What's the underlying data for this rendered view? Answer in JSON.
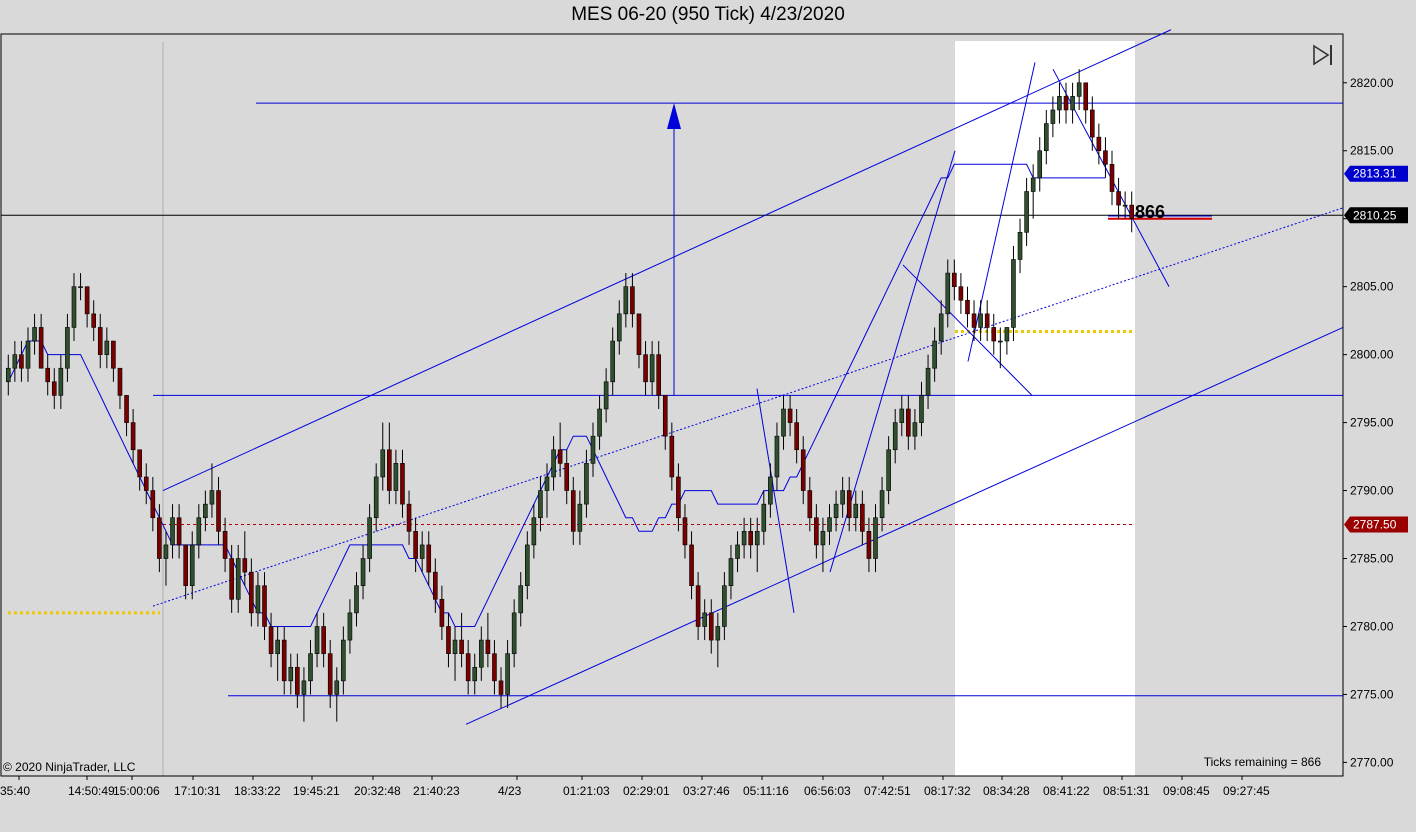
{
  "window": {
    "title": "MES 06-20 (950 Tick)  4/23/2020",
    "copyright": "© 2020 NinjaTrader, LLC",
    "ticks_remaining": "Ticks remaining = 866",
    "countdown_label": "866"
  },
  "colors": {
    "background": "#d9d9d9",
    "session_highlight": "#ffffff",
    "drawing_blue": "#0000dd",
    "up_candle": "#2f4f2f",
    "down_candle": "#7a0000",
    "price_badge_blue": "#0000cc",
    "price_badge_black": "#000000",
    "price_badge_red": "#9b0000",
    "pivot_yellow": "#f0c800"
  },
  "icons": {
    "play": "skip-to-end-icon"
  },
  "chart_data": {
    "type": "candlestick",
    "title": "MES 06-20 (950 Tick)  4/23/2020",
    "y_axis": {
      "side": "right",
      "ylim": [
        2769.0,
        2823.0
      ],
      "ticks": [
        "2820.00",
        "2815.00",
        "2810.00",
        "2805.00",
        "2800.00",
        "2795.00",
        "2790.00",
        "2785.00",
        "2780.00",
        "2775.00",
        "2770.00"
      ]
    },
    "x_axis": {
      "ticks": [
        "35:40",
        "14:50:49",
        "15:00:06",
        "17:10:31",
        "18:33:22",
        "19:45:21",
        "20:32:48",
        "21:40:23",
        "4/23",
        "01:21:03",
        "02:29:01",
        "03:27:46",
        "05:11:16",
        "06:56:03",
        "07:42:51",
        "08:17:32",
        "08:34:28",
        "08:41:22",
        "08:51:31",
        "09:08:45",
        "09:27:45"
      ]
    },
    "price_badges": [
      {
        "label": "2813.31",
        "value": 2813.31,
        "color": "blue"
      },
      {
        "label": "2810.25",
        "value": 2810.25,
        "color": "black"
      },
      {
        "label": "2787.50",
        "value": 2787.5,
        "color": "red"
      }
    ],
    "horizontal_lines": [
      {
        "value": 2818.5,
        "style": "solid"
      },
      {
        "value": 2797.0,
        "style": "solid"
      },
      {
        "value": 2774.9,
        "style": "solid"
      },
      {
        "value": 2810.25,
        "style": "last-price"
      },
      {
        "value": 2787.5,
        "style": "dotted-red"
      },
      {
        "value": 2781.0,
        "style": "dotted-yellow"
      },
      {
        "value": 2801.7,
        "style": "dotted-yellow"
      }
    ],
    "grid": false,
    "bars": [
      [
        2798,
        2800,
        2797,
        2799
      ],
      [
        2799,
        2801,
        2798,
        2800
      ],
      [
        2800,
        2801,
        2798,
        2799
      ],
      [
        2799,
        2802,
        2798,
        2801
      ],
      [
        2801,
        2803,
        2800,
        2802
      ],
      [
        2802,
        2803,
        2799,
        2799
      ],
      [
        2799,
        2800,
        2797,
        2798
      ],
      [
        2798,
        2799,
        2796,
        2797
      ],
      [
        2797,
        2800,
        2796,
        2799
      ],
      [
        2799,
        2803,
        2798,
        2802
      ],
      [
        2802,
        2806,
        2801,
        2805
      ],
      [
        2805,
        2806,
        2804,
        2805
      ],
      [
        2805,
        2805,
        2802,
        2803
      ],
      [
        2803,
        2804,
        2801,
        2802
      ],
      [
        2802,
        2803,
        2799,
        2800
      ],
      [
        2800,
        2802,
        2799,
        2801
      ],
      [
        2801,
        2801,
        2798,
        2799
      ],
      [
        2799,
        2799,
        2796,
        2797
      ],
      [
        2797,
        2797,
        2794,
        2795
      ],
      [
        2795,
        2796,
        2792,
        2793
      ],
      [
        2793,
        2793,
        2790,
        2791
      ],
      [
        2791,
        2792,
        2789,
        2790
      ],
      [
        2790,
        2791,
        2787,
        2788
      ],
      [
        2788,
        2789,
        2784,
        2785
      ],
      [
        2785,
        2787,
        2783,
        2786
      ],
      [
        2786,
        2789,
        2785,
        2788
      ],
      [
        2788,
        2789,
        2785,
        2786
      ],
      [
        2786,
        2786,
        2782,
        2783
      ],
      [
        2783,
        2787,
        2782,
        2786
      ],
      [
        2786,
        2789,
        2785,
        2788
      ],
      [
        2788,
        2790,
        2787,
        2789
      ],
      [
        2789,
        2792,
        2788,
        2790
      ],
      [
        2790,
        2791,
        2786,
        2787
      ],
      [
        2787,
        2788,
        2784,
        2785
      ],
      [
        2785,
        2786,
        2781,
        2782
      ],
      [
        2782,
        2786,
        2781,
        2785
      ],
      [
        2785,
        2787,
        2783,
        2784
      ],
      [
        2784,
        2785,
        2780,
        2781
      ],
      [
        2781,
        2784,
        2780,
        2783
      ],
      [
        2783,
        2784,
        2779,
        2780
      ],
      [
        2780,
        2781,
        2777,
        2778
      ],
      [
        2778,
        2780,
        2776,
        2779
      ],
      [
        2779,
        2780,
        2775,
        2776
      ],
      [
        2776,
        2778,
        2775,
        2777
      ],
      [
        2777,
        2778,
        2774,
        2775
      ],
      [
        2775,
        2777,
        2773,
        2776
      ],
      [
        2776,
        2779,
        2775,
        2778
      ],
      [
        2778,
        2781,
        2777,
        2780
      ],
      [
        2780,
        2781,
        2777,
        2778
      ],
      [
        2778,
        2779,
        2774,
        2775
      ],
      [
        2775,
        2777,
        2773,
        2776
      ],
      [
        2776,
        2780,
        2775,
        2779
      ],
      [
        2779,
        2782,
        2778,
        2781
      ],
      [
        2781,
        2784,
        2780,
        2783
      ],
      [
        2783,
        2786,
        2782,
        2785
      ],
      [
        2785,
        2789,
        2784,
        2788
      ],
      [
        2788,
        2792,
        2787,
        2791
      ],
      [
        2791,
        2795,
        2790,
        2793
      ],
      [
        2793,
        2795,
        2789,
        2790
      ],
      [
        2790,
        2793,
        2789,
        2792
      ],
      [
        2792,
        2793,
        2788,
        2789
      ],
      [
        2789,
        2790,
        2786,
        2787
      ],
      [
        2787,
        2788,
        2784,
        2785
      ],
      [
        2785,
        2787,
        2784,
        2786
      ],
      [
        2786,
        2787,
        2783,
        2784
      ],
      [
        2784,
        2785,
        2781,
        2782
      ],
      [
        2782,
        2783,
        2779,
        2780
      ],
      [
        2780,
        2781,
        2777,
        2778
      ],
      [
        2778,
        2780,
        2776,
        2779
      ],
      [
        2779,
        2781,
        2777,
        2778
      ],
      [
        2778,
        2779,
        2775,
        2776
      ],
      [
        2776,
        2778,
        2775,
        2777
      ],
      [
        2777,
        2780,
        2776,
        2779
      ],
      [
        2779,
        2781,
        2777,
        2778
      ],
      [
        2778,
        2779,
        2775,
        2776
      ],
      [
        2776,
        2777,
        2774,
        2775
      ],
      [
        2775,
        2779,
        2774,
        2778
      ],
      [
        2778,
        2782,
        2777,
        2781
      ],
      [
        2781,
        2784,
        2780,
        2783
      ],
      [
        2783,
        2787,
        2782,
        2786
      ],
      [
        2786,
        2789,
        2785,
        2788
      ],
      [
        2788,
        2791,
        2787,
        2790
      ],
      [
        2790,
        2792,
        2788,
        2791
      ],
      [
        2791,
        2794,
        2790,
        2793
      ],
      [
        2793,
        2795,
        2791,
        2792
      ],
      [
        2792,
        2793,
        2789,
        2790
      ],
      [
        2790,
        2791,
        2786,
        2787
      ],
      [
        2787,
        2790,
        2786,
        2789
      ],
      [
        2789,
        2793,
        2788,
        2792
      ],
      [
        2792,
        2795,
        2791,
        2794
      ],
      [
        2794,
        2797,
        2793,
        2796
      ],
      [
        2796,
        2799,
        2795,
        2798
      ],
      [
        2798,
        2802,
        2797,
        2801
      ],
      [
        2801,
        2804,
        2800,
        2803
      ],
      [
        2803,
        2806,
        2802,
        2805
      ],
      [
        2805,
        2806,
        2802,
        2803
      ],
      [
        2803,
        2803,
        2799,
        2800
      ],
      [
        2800,
        2801,
        2797,
        2798
      ],
      [
        2798,
        2801,
        2797,
        2800
      ],
      [
        2800,
        2801,
        2796,
        2797
      ],
      [
        2797,
        2797,
        2793,
        2794
      ],
      [
        2794,
        2795,
        2790,
        2791
      ],
      [
        2791,
        2792,
        2787,
        2788
      ],
      [
        2788,
        2789,
        2785,
        2786
      ],
      [
        2786,
        2787,
        2782,
        2783
      ],
      [
        2783,
        2784,
        2779,
        2780
      ],
      [
        2780,
        2782,
        2779,
        2781
      ],
      [
        2781,
        2782,
        2778,
        2779
      ],
      [
        2779,
        2781,
        2777,
        2780
      ],
      [
        2780,
        2784,
        2779,
        2783
      ],
      [
        2783,
        2786,
        2782,
        2785
      ],
      [
        2785,
        2787,
        2784,
        2786
      ],
      [
        2786,
        2788,
        2785,
        2787
      ],
      [
        2787,
        2788,
        2785,
        2786
      ],
      [
        2786,
        2788,
        2784,
        2787
      ],
      [
        2787,
        2790,
        2786,
        2789
      ],
      [
        2789,
        2792,
        2788,
        2791
      ],
      [
        2791,
        2795,
        2790,
        2794
      ],
      [
        2794,
        2797,
        2793,
        2796
      ],
      [
        2796,
        2797,
        2794,
        2795
      ],
      [
        2795,
        2796,
        2792,
        2793
      ],
      [
        2793,
        2794,
        2789,
        2790
      ],
      [
        2790,
        2791,
        2787,
        2788
      ],
      [
        2788,
        2789,
        2785,
        2786
      ],
      [
        2786,
        2788,
        2784,
        2787
      ],
      [
        2787,
        2789,
        2786,
        2788
      ],
      [
        2788,
        2790,
        2787,
        2789
      ],
      [
        2789,
        2791,
        2788,
        2790
      ],
      [
        2790,
        2791,
        2787,
        2788
      ],
      [
        2788,
        2790,
        2787,
        2789
      ],
      [
        2789,
        2790,
        2786,
        2787
      ],
      [
        2787,
        2788,
        2784,
        2785
      ],
      [
        2785,
        2789,
        2784,
        2788
      ],
      [
        2788,
        2791,
        2787,
        2790
      ],
      [
        2790,
        2794,
        2789,
        2793
      ],
      [
        2793,
        2796,
        2792,
        2795
      ],
      [
        2795,
        2797,
        2794,
        2796
      ],
      [
        2796,
        2797,
        2793,
        2794
      ],
      [
        2794,
        2796,
        2793,
        2795
      ],
      [
        2795,
        2798,
        2794,
        2797
      ],
      [
        2797,
        2800,
        2796,
        2799
      ],
      [
        2799,
        2802,
        2798,
        2801
      ],
      [
        2801,
        2804,
        2800,
        2803
      ],
      [
        2803,
        2807,
        2802,
        2806
      ],
      [
        2806,
        2807,
        2804,
        2805
      ],
      [
        2805,
        2806,
        2803,
        2804
      ],
      [
        2804,
        2805,
        2802,
        2803
      ],
      [
        2803,
        2804,
        2801,
        2802
      ],
      [
        2802,
        2804,
        2801,
        2803
      ],
      [
        2803,
        2804,
        2801,
        2802
      ],
      [
        2802,
        2803,
        2800,
        2801
      ],
      [
        2801,
        2802,
        2799,
        2801
      ],
      [
        2801,
        2802,
        2800,
        2802
      ],
      [
        2802,
        2808,
        2801,
        2807
      ],
      [
        2807,
        2810,
        2806,
        2809
      ],
      [
        2809,
        2813,
        2808,
        2812
      ],
      [
        2812,
        2814,
        2810,
        2813
      ],
      [
        2813,
        2816,
        2812,
        2815
      ],
      [
        2815,
        2818,
        2814,
        2817
      ],
      [
        2817,
        2819,
        2816,
        2818
      ],
      [
        2818,
        2820,
        2817,
        2819
      ],
      [
        2819,
        2820,
        2817,
        2818
      ],
      [
        2818,
        2820,
        2817,
        2819
      ],
      [
        2819,
        2821,
        2818,
        2820
      ],
      [
        2820,
        2820,
        2817,
        2818
      ],
      [
        2818,
        2819,
        2815,
        2816
      ],
      [
        2816,
        2817,
        2814,
        2815
      ],
      [
        2815,
        2816,
        2813,
        2814
      ],
      [
        2814,
        2815,
        2811,
        2812
      ],
      [
        2812,
        2813,
        2810,
        2811
      ],
      [
        2811,
        2812,
        2810,
        2811
      ],
      [
        2811,
        2812,
        2809,
        2810
      ]
    ],
    "moving_averages": [
      {
        "name": "",
        "values": [
          2798,
          2799,
          2800,
          2801,
          2801,
          2801,
          2800,
          2800,
          2800,
          2800,
          2800,
          2800,
          2799,
          2798,
          2797,
          2796,
          2795,
          2794,
          2793,
          2792,
          2791,
          2790,
          2789,
          2788,
          2787,
          2786,
          2786,
          2786,
          2786,
          2786,
          2786,
          2786,
          2786,
          2786,
          2785,
          2784,
          2783,
          2782,
          2781,
          2781,
          2780,
          2780,
          2780,
          2780,
          2780,
          2780,
          2780,
          2781,
          2782,
          2783,
          2784,
          2785,
          2786,
          2786,
          2786,
          2786,
          2786,
          2786,
          2786,
          2786,
          2786,
          2785,
          2785,
          2784,
          2783,
          2782,
          2781,
          2781,
          2780,
          2780,
          2780,
          2780,
          2781,
          2782,
          2783,
          2784,
          2785,
          2786,
          2787,
          2788,
          2789,
          2790,
          2791,
          2792,
          2793,
          2793,
          2794,
          2794,
          2794,
          2793,
          2792,
          2791,
          2790,
          2789,
          2788,
          2788,
          2787,
          2787,
          2787,
          2788,
          2788,
          2789,
          2789,
          2790,
          2790,
          2790,
          2790,
          2790,
          2789,
          2789,
          2789,
          2789,
          2789,
          2789,
          2789,
          2790,
          2790,
          2790,
          2790,
          2791,
          2791,
          2792,
          2793,
          2794,
          2795,
          2796,
          2797,
          2798,
          2799,
          2800,
          2801,
          2802,
          2803,
          2804,
          2805,
          2806,
          2807,
          2808,
          2809,
          2810,
          2811,
          2812,
          2813,
          2813,
          2814,
          2814,
          2814,
          2814,
          2814,
          2814,
          2814,
          2814,
          2814,
          2814,
          2814,
          2814,
          2813,
          2813,
          2813,
          2813,
          2813,
          2813,
          2813,
          2813,
          2813,
          2813,
          2813,
          2813
        ]
      }
    ],
    "annotations": [
      {
        "text": "866",
        "type": "countdown"
      }
    ]
  }
}
